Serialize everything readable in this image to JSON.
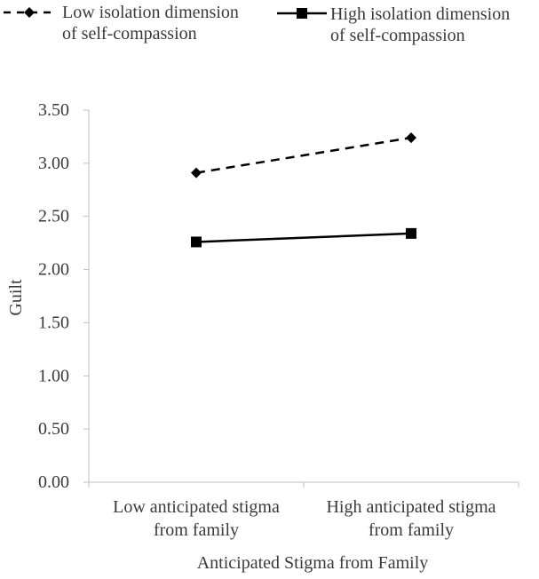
{
  "chart_data": {
    "type": "line",
    "title": "",
    "xlabel": "Anticipated Stigma from Family",
    "ylabel": "Guilt",
    "ylim": [
      0,
      3.5
    ],
    "yticks": [
      "0.00",
      "0.50",
      "1.00",
      "1.50",
      "2.00",
      "2.50",
      "3.00",
      "3.50"
    ],
    "ytick_values": [
      0,
      0.5,
      1.0,
      1.5,
      2.0,
      2.5,
      3.0,
      3.5
    ],
    "categories": [
      [
        "Low anticipated stigma",
        "from family"
      ],
      [
        "High anticipated stigma",
        "from family"
      ]
    ],
    "series": [
      {
        "name": "Low isolation dimension of self-compassion",
        "legend_lines": [
          "Low isolation dimension",
          "of self-compassion"
        ],
        "style": "dashed",
        "marker": "diamond",
        "values": [
          2.91,
          3.24
        ]
      },
      {
        "name": "High isolation dimension of self-compassion",
        "legend_lines": [
          "High isolation dimension",
          "of self-compassion"
        ],
        "style": "solid",
        "marker": "square",
        "values": [
          2.26,
          2.34
        ]
      }
    ],
    "legend_position": "top",
    "grid": false,
    "colors": {
      "line": "#000000",
      "axis": "#bfbfbf",
      "text": "#3a3a3a"
    }
  }
}
